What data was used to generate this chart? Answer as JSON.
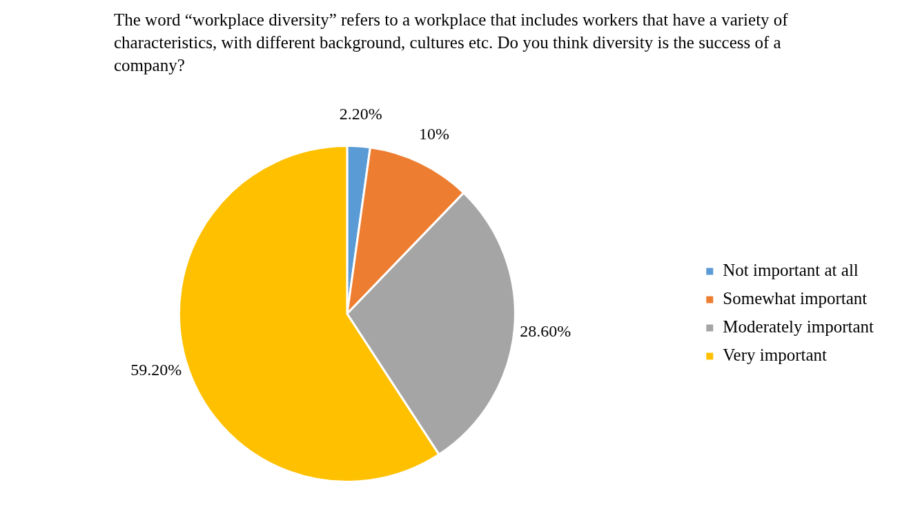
{
  "chart_data": {
    "type": "pie",
    "title": "The word “workplace diversity” refers to a workplace that includes workers that have a variety of characteristics, with different background, cultures etc. Do you think diversity is the success of a company?",
    "categories": [
      "Not important at all",
      "Somewhat important",
      "Moderately important",
      "Very important"
    ],
    "values": [
      2.2,
      10,
      28.6,
      59.2
    ],
    "colors": [
      "#5b9bd5",
      "#ed7d31",
      "#a5a5a5",
      "#ffc000"
    ],
    "value_labels": [
      "2.20%",
      "10%",
      "28.60%",
      "59.20%"
    ],
    "legend": "right"
  }
}
